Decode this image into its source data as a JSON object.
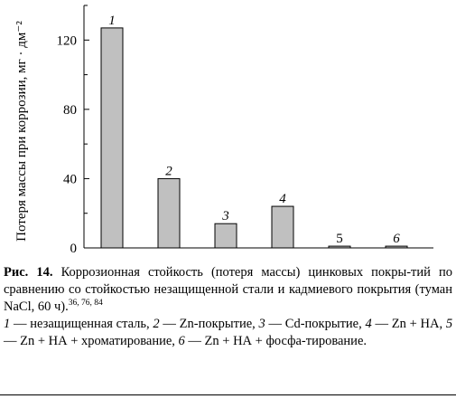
{
  "chart_data": {
    "type": "bar",
    "categories": [
      "1",
      "2",
      "3",
      "4",
      "5",
      "6"
    ],
    "values": [
      127,
      40,
      14,
      24,
      1,
      1
    ],
    "ylabel": "Потеря массы при коррозии, мг · дм⁻²",
    "ylim": [
      0,
      140
    ],
    "yticks": [
      0,
      40,
      80,
      120
    ],
    "bar_color": "#c0c0c0",
    "grid": false
  },
  "caption": {
    "figure_label": "Рис. 14.",
    "title": "Коррозионная стойкость (потеря массы) цинковых покры-тий по сравнению со стойкостью незащищенной стали и кадмиевого покрытия (туман NaCl, 60 ч).",
    "refs": "36, 76, 84",
    "legend": [
      {
        "num": "1",
        "text": "— незащищенная сталь,"
      },
      {
        "num": "2",
        "text": "— Zn-покрытие,"
      },
      {
        "num": "3",
        "text": "— Cd-покрытие,"
      },
      {
        "num": "4",
        "text": "— Zn + НА,"
      },
      {
        "num": "5",
        "text": "— Zn + НА + хроматирование,"
      },
      {
        "num": "6",
        "text": "— Zn + НА + фосфа-тирование."
      }
    ]
  }
}
